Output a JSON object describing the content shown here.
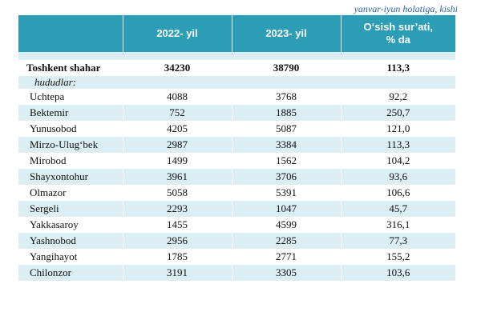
{
  "note": "yanvar-iyun holatiga,  kishi",
  "headers": [
    "",
    "2022- yil",
    "2023- yil",
    "O‘sish sur’ati,\n% da"
  ],
  "total": {
    "name": "Toshkent shahar",
    "y2022": "34230",
    "y2023": "38790",
    "growth": "113,3"
  },
  "subheading": "hududlar:",
  "rows": [
    {
      "name": "Uchtepa",
      "y2022": "4088",
      "y2023": "3768",
      "growth": "92,2"
    },
    {
      "name": "Bektemir",
      "y2022": "752",
      "y2023": "1885",
      "growth": "250,7"
    },
    {
      "name": "Yunusobod",
      "y2022": "4205",
      "y2023": "5087",
      "growth": "121,0"
    },
    {
      "name": "Mirzo-Ulug‘bek",
      "y2022": "2987",
      "y2023": "3384",
      "growth": "113,3"
    },
    {
      "name": "Mirobod",
      "y2022": "1499",
      "y2023": "1562",
      "growth": "104,2"
    },
    {
      "name": "Shayxontohur",
      "y2022": "3961",
      "y2023": "3706",
      "growth": "93,6"
    },
    {
      "name": "Olmazor",
      "y2022": "5058",
      "y2023": "5391",
      "growth": "106,6"
    },
    {
      "name": "Sergeli",
      "y2022": "2293",
      "y2023": "1047",
      "growth": "45,7"
    },
    {
      "name": "Yakkasaroy",
      "y2022": "1455",
      "y2023": "4599",
      "growth": "316,1"
    },
    {
      "name": "Yashnobod",
      "y2022": "2956",
      "y2023": "2285",
      "growth": "77,3"
    },
    {
      "name": "Yangihayot",
      "y2022": "1785",
      "y2023": "2771",
      "growth": "155,2"
    },
    {
      "name": "Chilonzor",
      "y2022": "3191",
      "y2023": "3305",
      "growth": "103,6"
    }
  ]
}
